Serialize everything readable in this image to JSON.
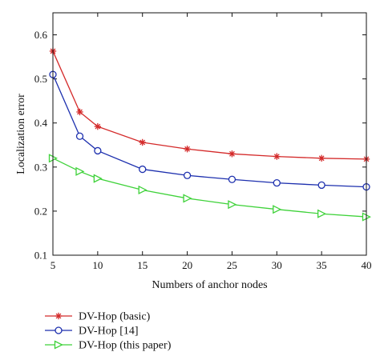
{
  "chart_data": {
    "type": "line",
    "title": "",
    "xlabel": "Numbers of anchor nodes",
    "ylabel": "Localization error",
    "xlim": [
      5,
      40
    ],
    "ylim": [
      0.1,
      0.65
    ],
    "x_ticks": [
      5,
      10,
      15,
      20,
      25,
      30,
      35,
      40
    ],
    "y_ticks": [
      0.1,
      0.2,
      0.3,
      0.4,
      0.5,
      0.6
    ],
    "grid": false,
    "legend_position": "below",
    "x": [
      5,
      8,
      10,
      15,
      20,
      25,
      30,
      35,
      40
    ],
    "series": [
      {
        "name": "DV-Hop (basic)",
        "color": "#d42a2a",
        "marker": "star",
        "values": [
          0.563,
          0.425,
          0.392,
          0.356,
          0.341,
          0.33,
          0.324,
          0.32,
          0.318
        ]
      },
      {
        "name": "DV-Hop [14]",
        "color": "#1c2fae",
        "marker": "circle",
        "values": [
          0.51,
          0.37,
          0.337,
          0.295,
          0.281,
          0.272,
          0.264,
          0.259,
          0.255
        ]
      },
      {
        "name": "DV-Hop (this paper)",
        "color": "#3fd23a",
        "marker": "triangle-right",
        "values": [
          0.32,
          0.29,
          0.274,
          0.248,
          0.229,
          0.215,
          0.204,
          0.194,
          0.187
        ]
      }
    ]
  }
}
